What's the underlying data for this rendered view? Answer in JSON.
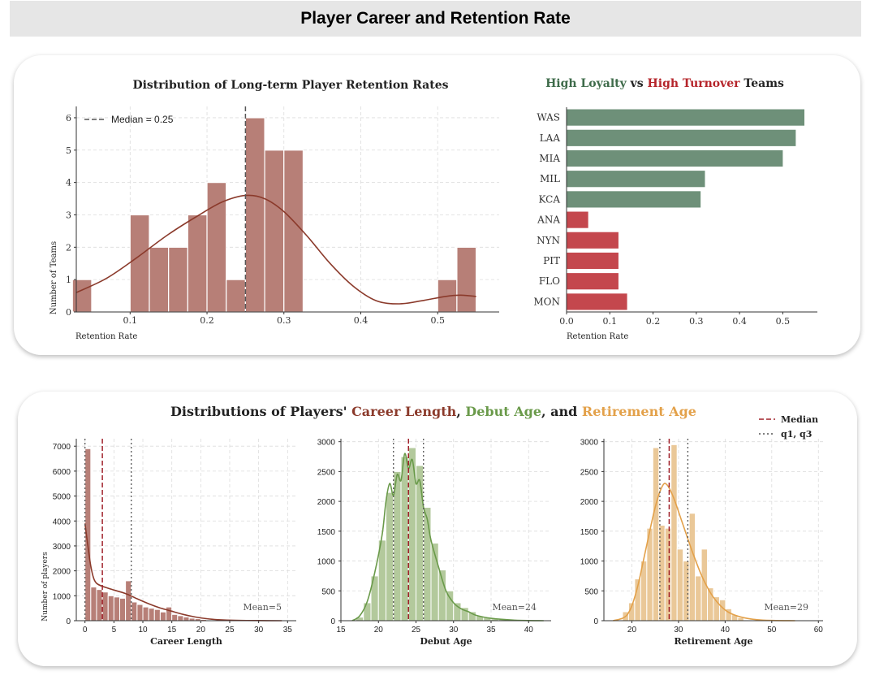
{
  "page_title": "Player Career and Retention Rate",
  "chart_data": [
    {
      "id": "retention",
      "type": "bar",
      "title": "Distribution of Long-term Player Retention Rates",
      "xlabel": "Retention Rate",
      "ylabel": "Number of Teams",
      "xlim": [
        0.03,
        0.58
      ],
      "ylim": [
        0,
        6.35
      ],
      "xticks": [
        0.1,
        0.2,
        0.3,
        0.4,
        0.5
      ],
      "yticks": [
        0,
        1,
        2,
        3,
        4,
        5,
        6
      ],
      "bin_width": 0.025,
      "bins": [
        {
          "start": 0.025,
          "count": 1
        },
        {
          "start": 0.1,
          "count": 3
        },
        {
          "start": 0.125,
          "count": 2
        },
        {
          "start": 0.15,
          "count": 2
        },
        {
          "start": 0.175,
          "count": 3
        },
        {
          "start": 0.2,
          "count": 4
        },
        {
          "start": 0.225,
          "count": 1
        },
        {
          "start": 0.25,
          "count": 6
        },
        {
          "start": 0.275,
          "count": 5
        },
        {
          "start": 0.3,
          "count": 5
        },
        {
          "start": 0.5,
          "count": 1
        },
        {
          "start": 0.525,
          "count": 2
        }
      ],
      "kde": [
        [
          0.03,
          0.6
        ],
        [
          0.07,
          1.05
        ],
        [
          0.11,
          1.7
        ],
        [
          0.15,
          2.4
        ],
        [
          0.19,
          3.0
        ],
        [
          0.22,
          3.4
        ],
        [
          0.25,
          3.6
        ],
        [
          0.275,
          3.5
        ],
        [
          0.3,
          3.1
        ],
        [
          0.33,
          2.35
        ],
        [
          0.36,
          1.5
        ],
        [
          0.39,
          0.8
        ],
        [
          0.42,
          0.35
        ],
        [
          0.45,
          0.25
        ],
        [
          0.48,
          0.35
        ],
        [
          0.51,
          0.48
        ],
        [
          0.53,
          0.52
        ],
        [
          0.55,
          0.48
        ]
      ],
      "median": 0.25,
      "legend": "Median = 0.25",
      "colors": {
        "bar": "#b77f77",
        "kde": "#8b3a2b",
        "median": "#555555"
      }
    },
    {
      "id": "teams",
      "type": "bar",
      "orientation": "horizontal",
      "title_parts": [
        {
          "text": "High Loyalty",
          "color": "#3e6b4a"
        },
        {
          "text": " vs ",
          "color": "#222222"
        },
        {
          "text": "High Turnover",
          "color": "#b5242a"
        },
        {
          "text": " Teams",
          "color": "#222222"
        }
      ],
      "xlabel": "Retention Rate",
      "xlim": [
        0,
        0.58
      ],
      "xticks": [
        0.0,
        0.1,
        0.2,
        0.3,
        0.4,
        0.5
      ],
      "categories": [
        "WAS",
        "LAA",
        "MIA",
        "MIL",
        "KCA",
        "ANA",
        "NYN",
        "PIT",
        "FLO",
        "MON"
      ],
      "values": [
        0.55,
        0.53,
        0.5,
        0.32,
        0.31,
        0.05,
        0.12,
        0.12,
        0.12,
        0.14
      ],
      "groups": [
        "high",
        "high",
        "high",
        "high",
        "high",
        "low",
        "low",
        "low",
        "low",
        "low"
      ],
      "colors": {
        "high": "#6e9079",
        "low": "#c4474d"
      }
    },
    {
      "id": "career",
      "type": "bar",
      "xlabel": "Career Length",
      "ylabel": "Number of players",
      "xlim": [
        -1.5,
        36.5
      ],
      "ylim": [
        0,
        7300
      ],
      "xticks": [
        0,
        5,
        10,
        15,
        20,
        25,
        30,
        35
      ],
      "yticks": [
        0,
        1000,
        2000,
        3000,
        4000,
        5000,
        6000,
        7000
      ],
      "bin_width": 1,
      "bins": [
        {
          "start": 0,
          "count": 6900
        },
        {
          "start": 1,
          "count": 1350
        },
        {
          "start": 2,
          "count": 1250
        },
        {
          "start": 3,
          "count": 1150
        },
        {
          "start": 4,
          "count": 1000
        },
        {
          "start": 5,
          "count": 950
        },
        {
          "start": 6,
          "count": 900
        },
        {
          "start": 7,
          "count": 1600
        },
        {
          "start": 8,
          "count": 750
        },
        {
          "start": 9,
          "count": 650
        },
        {
          "start": 10,
          "count": 550
        },
        {
          "start": 11,
          "count": 500
        },
        {
          "start": 12,
          "count": 450
        },
        {
          "start": 13,
          "count": 350
        },
        {
          "start": 14,
          "count": 550
        },
        {
          "start": 15,
          "count": 250
        },
        {
          "start": 16,
          "count": 200
        },
        {
          "start": 17,
          "count": 150
        },
        {
          "start": 18,
          "count": 100
        },
        {
          "start": 19,
          "count": 80
        },
        {
          "start": 20,
          "count": 50
        },
        {
          "start": 21,
          "count": 30
        },
        {
          "start": 22,
          "count": 20
        }
      ],
      "kde": [
        [
          0,
          3900
        ],
        [
          0.5,
          3000
        ],
        [
          1,
          2200
        ],
        [
          1.5,
          1700
        ],
        [
          2,
          1500
        ],
        [
          3,
          1380
        ],
        [
          5,
          1230
        ],
        [
          7,
          1090
        ],
        [
          9,
          880
        ],
        [
          11,
          680
        ],
        [
          13,
          510
        ],
        [
          15,
          380
        ],
        [
          17,
          250
        ],
        [
          19,
          150
        ],
        [
          21,
          80
        ],
        [
          23,
          40
        ],
        [
          26,
          15
        ],
        [
          30,
          5
        ],
        [
          34,
          0
        ]
      ],
      "median": 3,
      "q1": 0,
      "q3": 8,
      "mean_label": "Mean=5",
      "colors": {
        "bar": "#b77f77",
        "kde": "#8b3a2b",
        "median": "#a0202a",
        "quartile": "#555555"
      }
    },
    {
      "id": "debut",
      "type": "bar",
      "xlabel": "Debut Age",
      "xlim": [
        15,
        43
      ],
      "ylim": [
        0,
        3050
      ],
      "xticks": [
        15,
        20,
        25,
        30,
        35,
        40
      ],
      "yticks": [
        0,
        500,
        1000,
        1500,
        2000,
        2500,
        3000
      ],
      "bin_width": 1,
      "bins": [
        {
          "start": 17,
          "count": 60
        },
        {
          "start": 18,
          "count": 300
        },
        {
          "start": 19,
          "count": 750
        },
        {
          "start": 20,
          "count": 1350
        },
        {
          "start": 21,
          "count": 2150
        },
        {
          "start": 22,
          "count": 2500
        },
        {
          "start": 23,
          "count": 2750
        },
        {
          "start": 24,
          "count": 2900
        },
        {
          "start": 25,
          "count": 2600
        },
        {
          "start": 26,
          "count": 1900
        },
        {
          "start": 27,
          "count": 1300
        },
        {
          "start": 28,
          "count": 850
        },
        {
          "start": 29,
          "count": 500
        },
        {
          "start": 30,
          "count": 300
        },
        {
          "start": 31,
          "count": 220
        },
        {
          "start": 32,
          "count": 150
        },
        {
          "start": 33,
          "count": 80
        },
        {
          "start": 34,
          "count": 50
        },
        {
          "start": 35,
          "count": 30
        },
        {
          "start": 36,
          "count": 20
        }
      ],
      "kde": [
        [
          16.5,
          0
        ],
        [
          17.5,
          80
        ],
        [
          18.5,
          320
        ],
        [
          19.5,
          800
        ],
        [
          20.5,
          1450
        ],
        [
          21,
          2000
        ],
        [
          21.5,
          2300
        ],
        [
          22,
          2100
        ],
        [
          22.5,
          2450
        ],
        [
          23,
          2350
        ],
        [
          23.5,
          2800
        ],
        [
          24,
          2550
        ],
        [
          24.5,
          2700
        ],
        [
          25,
          2300
        ],
        [
          25.5,
          2350
        ],
        [
          26,
          1900
        ],
        [
          26.5,
          1700
        ],
        [
          27,
          1350
        ],
        [
          28,
          900
        ],
        [
          29,
          500
        ],
        [
          30,
          300
        ],
        [
          31,
          200
        ],
        [
          32,
          150
        ],
        [
          33,
          90
        ],
        [
          35,
          40
        ],
        [
          38,
          10
        ],
        [
          42,
          0
        ]
      ],
      "median": 24,
      "q1": 22,
      "q3": 26,
      "mean_label": "Mean=24",
      "colors": {
        "bar": "#b3c99c",
        "kde": "#6a9a4a",
        "median": "#a0202a",
        "quartile": "#555555"
      }
    },
    {
      "id": "retirement",
      "type": "bar",
      "xlabel": "Retirement Age",
      "xlim": [
        14,
        61
      ],
      "ylim": [
        0,
        3050
      ],
      "xticks": [
        20,
        30,
        40,
        50,
        60
      ],
      "yticks": [
        0,
        500,
        1000,
        1500,
        2000,
        2500,
        3000
      ],
      "bin_width": 1.3,
      "bins": [
        {
          "start": 18,
          "count": 150
        },
        {
          "start": 19.3,
          "count": 300
        },
        {
          "start": 20.6,
          "count": 700
        },
        {
          "start": 21.9,
          "count": 1000
        },
        {
          "start": 23.2,
          "count": 1550
        },
        {
          "start": 24.5,
          "count": 2900
        },
        {
          "start": 25.8,
          "count": 1600
        },
        {
          "start": 27.1,
          "count": 1550
        },
        {
          "start": 28.4,
          "count": 2950
        },
        {
          "start": 29.7,
          "count": 1200
        },
        {
          "start": 31,
          "count": 1000
        },
        {
          "start": 32.3,
          "count": 1800
        },
        {
          "start": 33.6,
          "count": 750
        },
        {
          "start": 34.9,
          "count": 1200
        },
        {
          "start": 36.2,
          "count": 550
        },
        {
          "start": 37.5,
          "count": 400
        },
        {
          "start": 38.8,
          "count": 350
        },
        {
          "start": 40.1,
          "count": 200
        },
        {
          "start": 41.4,
          "count": 100
        },
        {
          "start": 42.7,
          "count": 50
        }
      ],
      "kde": [
        [
          16,
          0
        ],
        [
          19,
          100
        ],
        [
          21,
          500
        ],
        [
          23,
          1200
        ],
        [
          25,
          1900
        ],
        [
          26.5,
          2250
        ],
        [
          27.5,
          2280
        ],
        [
          29,
          2050
        ],
        [
          31,
          1600
        ],
        [
          33,
          1150
        ],
        [
          35,
          750
        ],
        [
          37,
          450
        ],
        [
          39,
          250
        ],
        [
          41,
          130
        ],
        [
          44,
          50
        ],
        [
          48,
          10
        ],
        [
          55,
          0
        ]
      ],
      "median": 28,
      "q1": 26,
      "q3": 32,
      "mean_label": "Mean=29",
      "colors": {
        "bar": "#eac898",
        "kde": "#e3a14a",
        "median": "#a0202a",
        "quartile": "#555555"
      }
    }
  ],
  "bottom_title_parts": [
    {
      "text": "Distributions of Players' ",
      "color": "#222222"
    },
    {
      "text": "Career Length",
      "color": "#8b3a2b"
    },
    {
      "text": ", ",
      "color": "#222222"
    },
    {
      "text": "Debut Age",
      "color": "#6a9a4a"
    },
    {
      "text": ", and ",
      "color": "#222222"
    },
    {
      "text": "Retirement Age",
      "color": "#e3a14a"
    }
  ],
  "bottom_legend": [
    {
      "label": "Median",
      "style": "dashed",
      "color": "#a0202a"
    },
    {
      "label": "q1, q3",
      "style": "dotted",
      "color": "#555555"
    }
  ]
}
